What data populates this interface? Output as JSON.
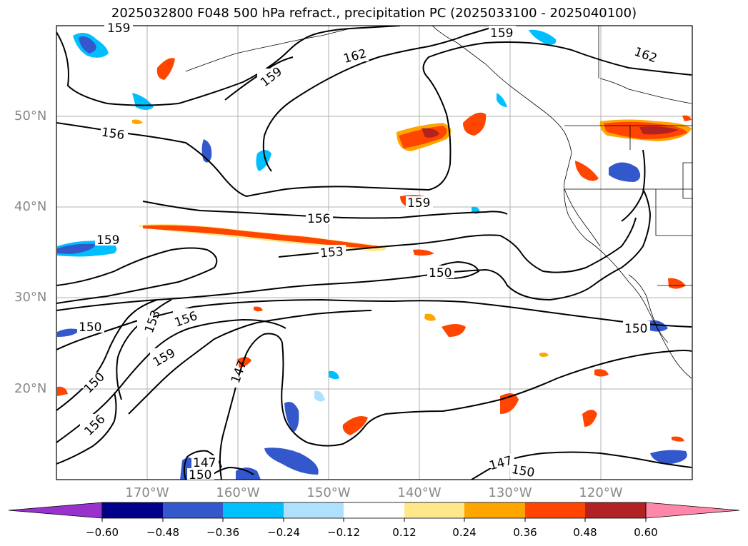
{
  "title": "2025032800 F048 500 hPa refract., precipitation PC (2025033100 - 2025040100)",
  "lat_labels": [
    "50°N",
    "40°N",
    "30°N",
    "20°N"
  ],
  "lon_labels": [
    "170°W",
    "160°W",
    "150°W",
    "140°W",
    "130°W",
    "120°W"
  ],
  "colorbar": {
    "ticks": [
      "−0.60",
      "−0.48",
      "−0.36",
      "−0.24",
      "−0.12",
      "0.12",
      "0.24",
      "0.36",
      "0.48",
      "0.60"
    ],
    "colors": [
      "#9932cc",
      "#00008b",
      "#3358cc",
      "#00bfff",
      "#b0e0ff",
      "#ffffff",
      "#ffe88a",
      "#ffa500",
      "#ff4500",
      "#b22222",
      "#ff88aa"
    ]
  },
  "contour_labels": [
    "159",
    "159",
    "162",
    "162",
    "159",
    "156",
    "159",
    "156",
    "159",
    "153",
    "150",
    "150",
    "153",
    "156",
    "150",
    "159",
    "150",
    "147",
    "156",
    "147",
    "150",
    "147",
    "150"
  ],
  "map_colors": {
    "grid": "#b0b0b0",
    "contour": "#000000",
    "neg_strong": "#3358cc",
    "neg_mid": "#00bfff",
    "neg_weak": "#b0e0ff",
    "pos_weak": "#ffe88a",
    "pos_mid": "#ffa500",
    "pos_strong": "#ff4500",
    "pos_max": "#b22222"
  }
}
